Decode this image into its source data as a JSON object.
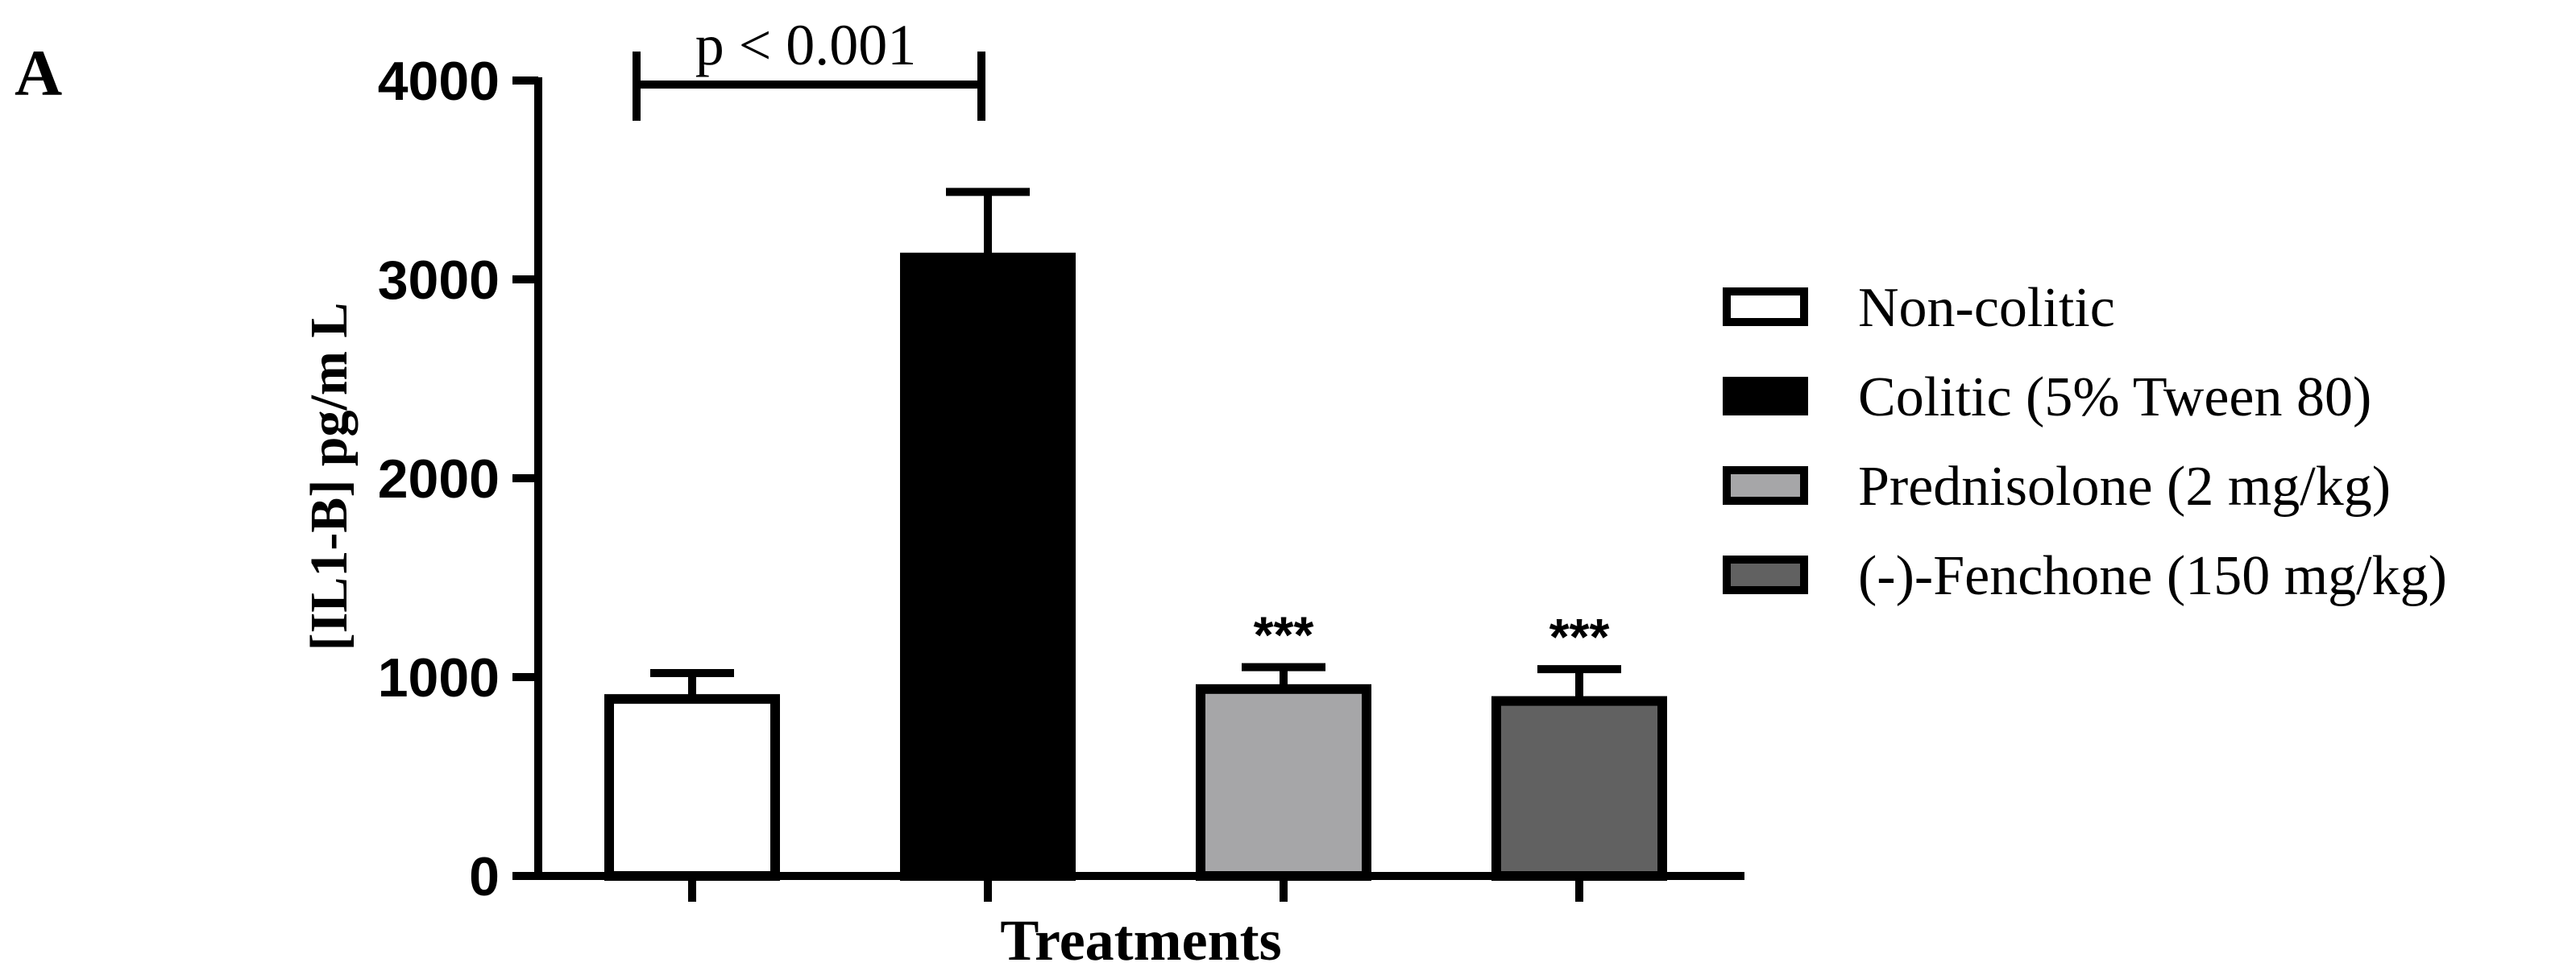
{
  "panel_label": "A",
  "chart_data": {
    "type": "bar",
    "title": "",
    "xlabel": "Treatments",
    "ylabel": "[IL1-B] pg/m L",
    "ylim": [
      0,
      4000
    ],
    "yticks": [
      0,
      1000,
      2000,
      3000,
      4000
    ],
    "ytick_labels": [
      "0",
      "1000",
      "2000",
      "3000",
      "4000"
    ],
    "categories": [
      "Non-colitic",
      "Colitic (5% Tween 80)",
      "Prednisolone (2 mg/kg)",
      "(-)-Fenchone (150 mg/kg)"
    ],
    "values": [
      890,
      3110,
      940,
      880
    ],
    "errors": [
      130,
      330,
      110,
      160
    ],
    "colors": [
      "#ffffff",
      "#000000",
      "#a6a6a8",
      "#616161"
    ],
    "significance": [
      "",
      "",
      "***",
      "***"
    ],
    "bracket": {
      "from": 0,
      "to": 1,
      "label": "p < 0.001"
    },
    "legend": {
      "position": "right",
      "entries": [
        "Non-colitic",
        "Colitic (5% Tween 80)",
        "Prednisolone (2 mg/kg)",
        "(-)-Fenchone (150 mg/kg)"
      ]
    },
    "grid": false
  }
}
